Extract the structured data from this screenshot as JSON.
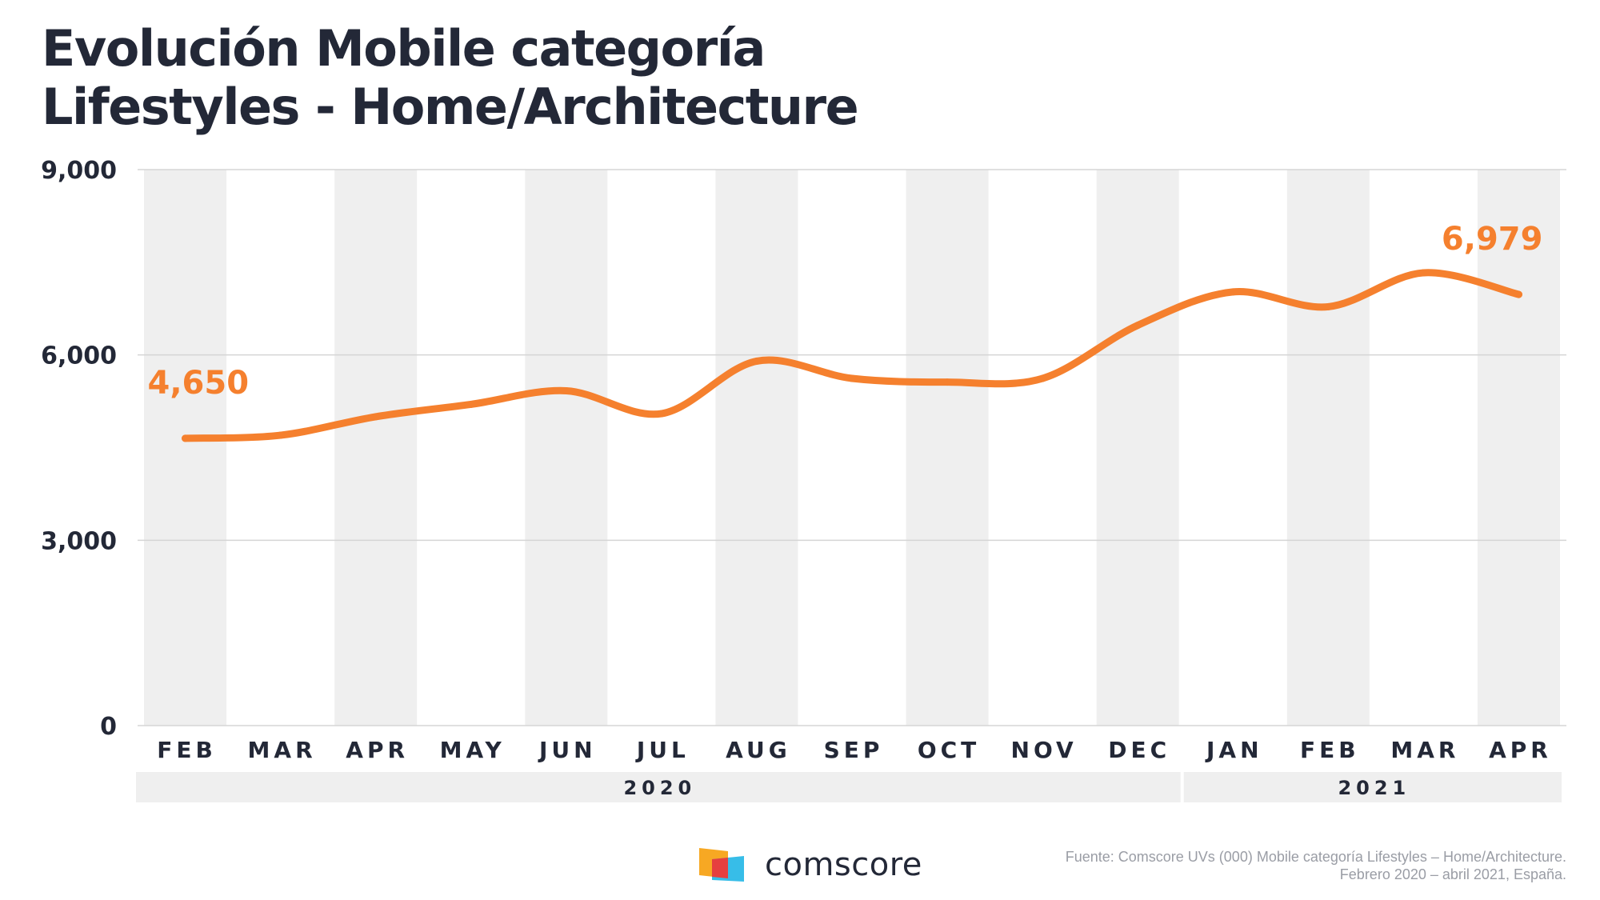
{
  "title": {
    "line1": "Evolución Mobile categoría",
    "line2": "Lifestyles - Home/Architecture"
  },
  "colors": {
    "line": "#f5802e",
    "band": "#efefef",
    "text": "#232837",
    "grid": "#d5d5d5"
  },
  "chart_data": {
    "type": "line",
    "categories": [
      "FEB",
      "MAR",
      "APR",
      "MAY",
      "JUN",
      "JUL",
      "AUG",
      "SEP",
      "OCT",
      "NOV",
      "DEC",
      "JAN",
      "FEB",
      "MAR",
      "APR"
    ],
    "series": [
      {
        "values": [
          4650,
          4700,
          5000,
          5200,
          5420,
          5050,
          5900,
          5620,
          5560,
          5620,
          6480,
          7020,
          6780,
          7330,
          6979
        ]
      }
    ],
    "ylim": [
      0,
      9000
    ],
    "y_ticks": [
      "9,000",
      "6,000",
      "3,000",
      "0"
    ],
    "y_tick_values": [
      9000,
      6000,
      3000,
      0
    ],
    "groups": [
      {
        "label": "2020",
        "from": 0,
        "to": 10
      },
      {
        "label": "2021",
        "from": 11,
        "to": 14
      }
    ],
    "annotations": [
      {
        "index": 0,
        "text": "4,650"
      },
      {
        "index": 14,
        "text": "6,979"
      }
    ],
    "grid": true,
    "alternating_bands": true
  },
  "footer": {
    "brand": "comscore",
    "source_line1": "Fuente: Comscore UVs (000) Mobile categoría Lifestyles – Home/Architecture.",
    "source_line2": "Febrero 2020 – abril 2021, España."
  }
}
